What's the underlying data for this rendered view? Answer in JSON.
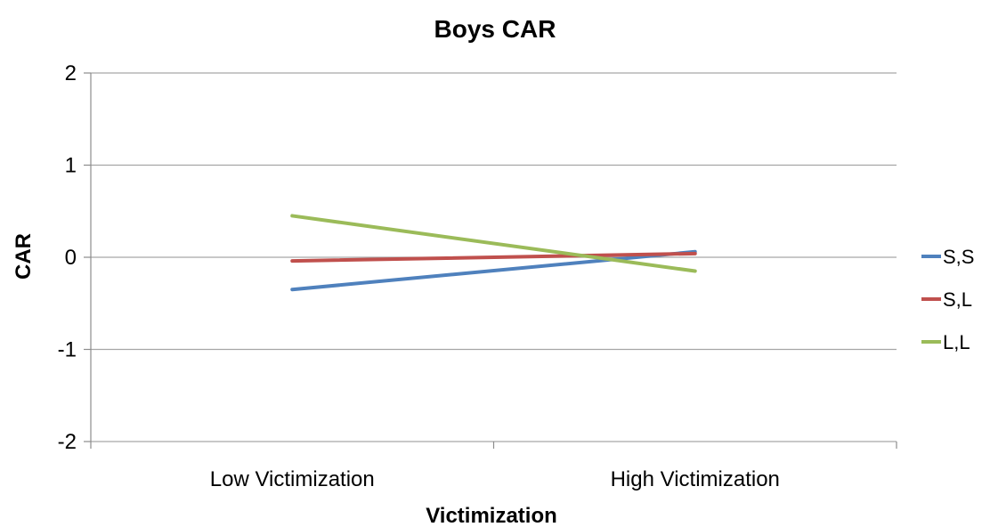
{
  "chart_data": {
    "type": "line",
    "title": "Boys CAR",
    "xlabel": "Victimization",
    "ylabel": "CAR",
    "categories": [
      "Low Victimization",
      "High Victimization"
    ],
    "ylim": [
      -2,
      2
    ],
    "yticks": [
      2,
      1,
      0,
      -1,
      -2
    ],
    "grid": true,
    "legend_position": "right",
    "series": [
      {
        "name": "S,S",
        "color": "#4f81bd",
        "values": [
          -0.35,
          0.06
        ]
      },
      {
        "name": "S,L",
        "color": "#c0504d",
        "values": [
          -0.04,
          0.04
        ]
      },
      {
        "name": "L,L",
        "color": "#9bbb59",
        "values": [
          0.45,
          -0.15
        ]
      }
    ]
  }
}
